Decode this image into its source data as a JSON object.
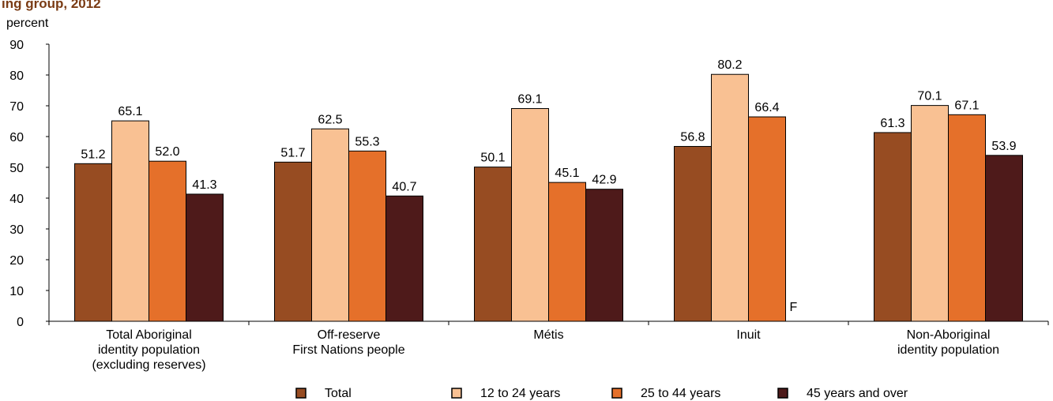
{
  "chart_data": {
    "type": "bar",
    "title": "ing group, 2012",
    "ylabel": "percent",
    "ylim": [
      0,
      90
    ],
    "yticks": [
      0,
      10,
      20,
      30,
      40,
      50,
      60,
      70,
      80,
      90
    ],
    "categories": [
      [
        "Total Aboriginal",
        "identity population",
        "(excluding reserves)"
      ],
      [
        "Off-reserve",
        "First Nations people"
      ],
      [
        "Métis"
      ],
      [
        "Inuit"
      ],
      [
        "Non-Aboriginal",
        "identity population"
      ]
    ],
    "series": [
      {
        "name": "Total",
        "color": "#974c22",
        "values": [
          51.2,
          51.7,
          50.1,
          56.8,
          61.3
        ],
        "labels": [
          "51.2",
          "51.7",
          "50.1",
          "56.8",
          "61.3"
        ]
      },
      {
        "name": "12 to 24 years",
        "color": "#f9c193",
        "values": [
          65.1,
          62.5,
          69.1,
          80.2,
          70.1
        ],
        "labels": [
          "65.1",
          "62.5",
          "69.1",
          "80.2",
          "70.1"
        ]
      },
      {
        "name": "25 to 44 years",
        "color": "#e5702a",
        "values": [
          52.0,
          55.3,
          45.1,
          66.4,
          67.1
        ],
        "labels": [
          "52.0",
          "55.3",
          "45.1",
          "66.4",
          "67.1"
        ]
      },
      {
        "name": "45 years and over",
        "color": "#4e1a1a",
        "values": [
          41.3,
          40.7,
          42.9,
          null,
          53.9
        ],
        "labels": [
          "41.3",
          "40.7",
          "42.9",
          "F",
          "53.9"
        ]
      }
    ],
    "legend_position": "bottom",
    "grid": false
  }
}
